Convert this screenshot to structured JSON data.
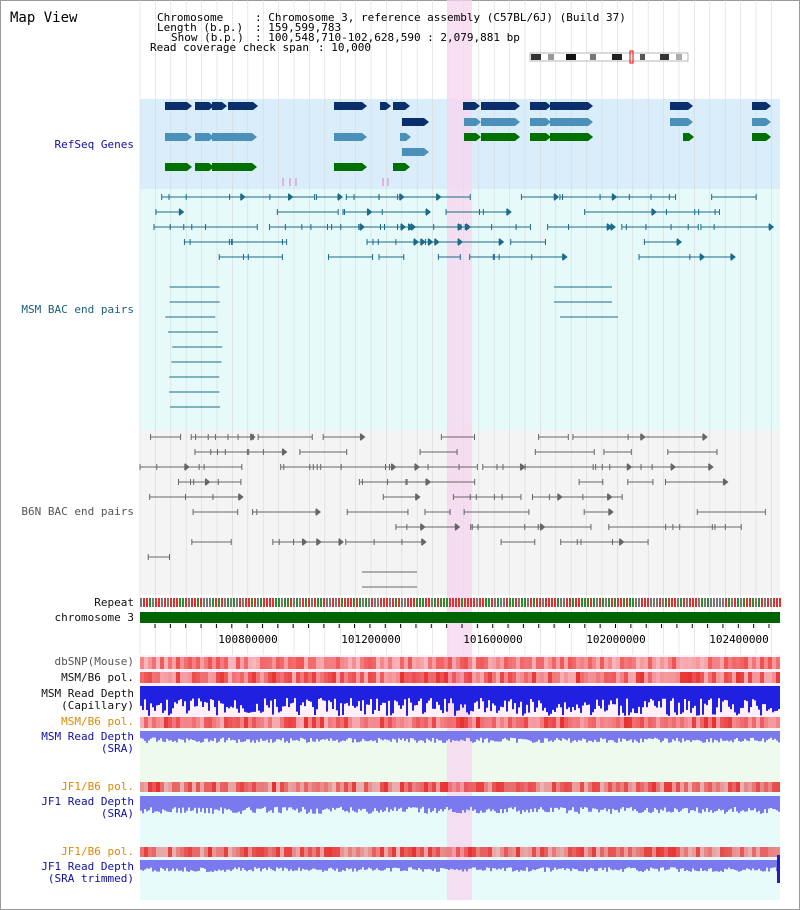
{
  "page": {
    "title": "Map View"
  },
  "info": {
    "chromosome_key": "Chromosome",
    "chromosome_val": ": Chromosome 3, reference assembly (C57BL/6J) (Build 37)",
    "length_key": "Length (b.p.)",
    "length_val": ": 159,599,783",
    "show_key": "Show (b.p.)",
    "show_val": ": 100,548,710-102,628,590 : 2,079,881 bp",
    "coverage_key": "Read coverage check span",
    "coverage_val": ": 10,000"
  },
  "tracks": {
    "refseq": "RefSeq Genes",
    "msm_bac": "MSM BAC end pairs",
    "b6n_bac": "B6N BAC end pairs",
    "repeat": "Repeat",
    "chromosome": "chromosome 3",
    "dbsnp": "dbSNP(Mouse)",
    "msm_b6_pol_1": "MSM/B6 pol.",
    "msm_depth_cap_1": "MSM Read Depth",
    "msm_depth_cap_2": "(Capillary)",
    "msm_b6_pol_2": "MSM/B6 pol.",
    "msm_depth_sra_1": "MSM Read Depth",
    "msm_depth_sra_2": "(SRA)",
    "jf1_b6_pol_1": "JF1/B6 pol.",
    "jf1_depth_sra_1": "JF1 Read Depth",
    "jf1_depth_sra_2": "(SRA)",
    "jf1_b6_pol_2": "JF1/B6 pol.",
    "jf1_depth_trim_1": "JF1 Read Depth",
    "jf1_depth_trim_2": "(SRA trimmed)"
  },
  "axis": {
    "ticks": [
      "100800000",
      "101200000",
      "101600000",
      "102000000",
      "102400000"
    ]
  },
  "colors": {
    "refseq_bg": "#d9eefa",
    "msm_bg": "#e6fafa",
    "b6n_bg": "#f4f4f4",
    "highlight": "#f7d4ef",
    "gene_dark": "#0b2f6b",
    "gene_mid": "#4a90b8",
    "gene_green": "#007000",
    "chromosome_bar": "#006400",
    "depth_blue": "#2020e0",
    "depth_light": "#7a7aee",
    "pol_red": "#e83030",
    "msm_pair": "#1a6a8a",
    "b6n_pair": "#666666"
  }
}
